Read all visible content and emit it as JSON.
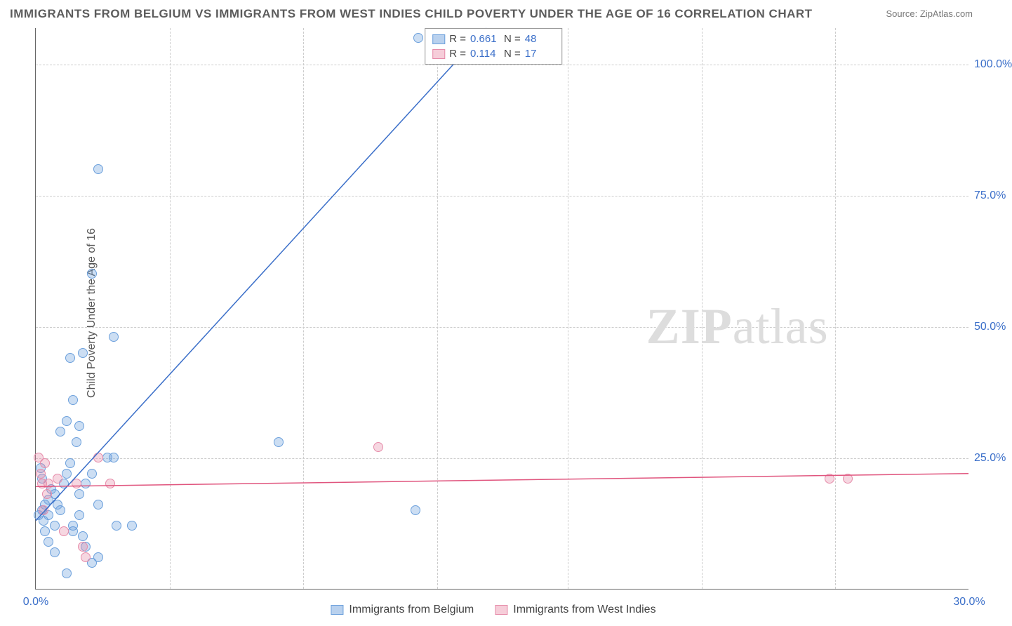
{
  "title": "IMMIGRANTS FROM BELGIUM VS IMMIGRANTS FROM WEST INDIES CHILD POVERTY UNDER THE AGE OF 16 CORRELATION CHART",
  "source": "Source: ZipAtlas.com",
  "ylabel": "Child Poverty Under the Age of 16",
  "watermark_part1": "ZIP",
  "watermark_part2": "atlas",
  "chart": {
    "type": "scatter",
    "xlim": [
      0,
      30
    ],
    "ylim": [
      0,
      107
    ],
    "xtick_labels": [
      "0.0%",
      "30.0%"
    ],
    "xtick_positions": [
      0,
      30
    ],
    "ytick_labels": [
      "25.0%",
      "50.0%",
      "75.0%",
      "100.0%"
    ],
    "ytick_positions": [
      25,
      50,
      75,
      100
    ],
    "xgrid_positions": [
      4.3,
      8.6,
      12.9,
      17.1,
      21.4,
      25.7
    ],
    "background_color": "#ffffff",
    "grid_color": "#cccccc",
    "axis_color": "#666666",
    "tick_color": "#3b6fc9"
  },
  "series": [
    {
      "name": "Immigrants from Belgium",
      "color_fill": "rgba(108,160,220,0.35)",
      "color_stroke": "#6ca0dc",
      "swatch_fill": "#b9d1ee",
      "swatch_border": "#6ca0dc",
      "R": "0.661",
      "N": "48",
      "trend": {
        "x1": 0,
        "y1": 13,
        "x2": 14.5,
        "y2": 107,
        "color": "#3b6fc9",
        "width": 1.5
      },
      "points": [
        [
          0.1,
          14
        ],
        [
          0.2,
          15
        ],
        [
          0.3,
          16
        ],
        [
          0.25,
          13
        ],
        [
          0.4,
          17
        ],
        [
          0.5,
          19
        ],
        [
          0.6,
          18
        ],
        [
          0.7,
          16
        ],
        [
          0.8,
          15
        ],
        [
          0.9,
          20
        ],
        [
          1.0,
          22
        ],
        [
          1.1,
          24
        ],
        [
          1.2,
          12
        ],
        [
          1.3,
          28
        ],
        [
          1.4,
          14
        ],
        [
          1.5,
          10
        ],
        [
          1.6,
          8
        ],
        [
          1.8,
          5
        ],
        [
          2.0,
          6
        ],
        [
          0.3,
          11
        ],
        [
          0.4,
          9
        ],
        [
          0.6,
          7
        ],
        [
          1.0,
          3
        ],
        [
          1.2,
          11
        ],
        [
          1.4,
          18
        ],
        [
          1.6,
          20
        ],
        [
          1.8,
          22
        ],
        [
          2.0,
          16
        ],
        [
          2.3,
          25
        ],
        [
          2.5,
          25
        ],
        [
          2.6,
          12
        ],
        [
          3.1,
          12
        ],
        [
          0.8,
          30
        ],
        [
          1.0,
          32
        ],
        [
          1.2,
          36
        ],
        [
          1.4,
          31
        ],
        [
          1.1,
          44
        ],
        [
          1.5,
          45
        ],
        [
          2.5,
          48
        ],
        [
          1.8,
          60
        ],
        [
          2.0,
          80
        ],
        [
          7.8,
          28
        ],
        [
          12.2,
          15
        ],
        [
          12.3,
          105
        ],
        [
          0.2,
          21
        ],
        [
          0.15,
          23
        ],
        [
          0.4,
          14
        ],
        [
          0.6,
          12
        ]
      ]
    },
    {
      "name": "Immigrants from West Indies",
      "color_fill": "rgba(230,140,170,0.35)",
      "color_stroke": "#e68caa",
      "swatch_fill": "#f6cdd9",
      "swatch_border": "#e68caa",
      "R": "0.114",
      "N": "17",
      "trend": {
        "x1": 0,
        "y1": 19.5,
        "x2": 30,
        "y2": 22,
        "color": "#e0557e",
        "width": 1.5
      },
      "points": [
        [
          0.1,
          25
        ],
        [
          0.15,
          22
        ],
        [
          0.2,
          20
        ],
        [
          0.25,
          15
        ],
        [
          0.3,
          24
        ],
        [
          0.35,
          18
        ],
        [
          0.4,
          20
        ],
        [
          0.7,
          21
        ],
        [
          0.9,
          11
        ],
        [
          1.3,
          20
        ],
        [
          1.5,
          8
        ],
        [
          1.6,
          6
        ],
        [
          2.0,
          25
        ],
        [
          2.4,
          20
        ],
        [
          11.0,
          27
        ],
        [
          25.5,
          21
        ],
        [
          26.1,
          21
        ]
      ]
    }
  ],
  "legend_top": {
    "R_label": "R =",
    "N_label": "N ="
  },
  "legend_bottom_labels": [
    "Immigrants from Belgium",
    "Immigrants from West Indies"
  ]
}
